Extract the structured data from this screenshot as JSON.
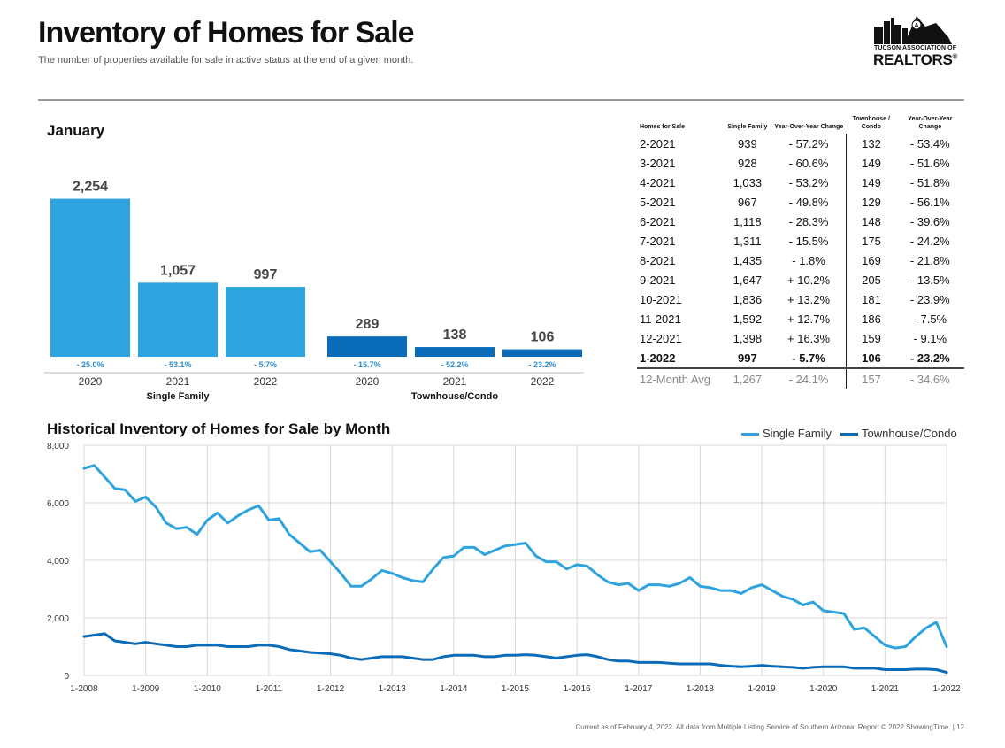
{
  "header": {
    "title": "Inventory of Homes for Sale",
    "subtitle": "The number of properties available for sale in active status at the end of a given month.",
    "logo_line1": "TUCSON ASSOCIATION OF",
    "logo_line2": "REALTORS",
    "logo_mark": "®",
    "logo_badge": "A"
  },
  "colors": {
    "single_family": "#2fa3de",
    "townhouse_condo": "#0a6cb8",
    "yoy_text": "#2f8fd0"
  },
  "chart_data": [
    {
      "type": "bar",
      "title": "January",
      "groups": [
        {
          "name": "Single Family",
          "color": "#2fa3de",
          "bars": [
            {
              "year": "2020",
              "value": 2254,
              "label": "2,254",
              "yoy": "- 25.0%"
            },
            {
              "year": "2021",
              "value": 1057,
              "label": "1,057",
              "yoy": "- 53.1%"
            },
            {
              "year": "2022",
              "value": 997,
              "label": "997",
              "yoy": "- 5.7%"
            }
          ]
        },
        {
          "name": "Townhouse/Condo",
          "color": "#0a6cb8",
          "bars": [
            {
              "year": "2020",
              "value": 289,
              "label": "289",
              "yoy": "- 15.7%"
            },
            {
              "year": "2021",
              "value": 138,
              "label": "138",
              "yoy": "- 52.2%"
            },
            {
              "year": "2022",
              "value": 106,
              "label": "106",
              "yoy": "- 23.2%"
            }
          ]
        }
      ],
      "ylim": [
        0,
        2400
      ]
    },
    {
      "type": "table",
      "columns": [
        "Homes for Sale",
        "Single Family",
        "Year-Over-Year Change",
        "Townhouse / Condo",
        "Year-Over-Year Change"
      ],
      "rows": [
        [
          "2-2021",
          "939",
          "- 57.2%",
          "132",
          "- 53.4%"
        ],
        [
          "3-2021",
          "928",
          "- 60.6%",
          "149",
          "- 51.6%"
        ],
        [
          "4-2021",
          "1,033",
          "- 53.2%",
          "149",
          "- 51.8%"
        ],
        [
          "5-2021",
          "967",
          "- 49.8%",
          "129",
          "- 56.1%"
        ],
        [
          "6-2021",
          "1,118",
          "- 28.3%",
          "148",
          "- 39.6%"
        ],
        [
          "7-2021",
          "1,311",
          "- 15.5%",
          "175",
          "- 24.2%"
        ],
        [
          "8-2021",
          "1,435",
          "- 1.8%",
          "169",
          "- 21.8%"
        ],
        [
          "9-2021",
          "1,647",
          "+ 10.2%",
          "205",
          "- 13.5%"
        ],
        [
          "10-2021",
          "1,836",
          "+ 13.2%",
          "181",
          "- 23.9%"
        ],
        [
          "11-2021",
          "1,592",
          "+ 12.7%",
          "186",
          "- 7.5%"
        ],
        [
          "12-2021",
          "1,398",
          "+ 16.3%",
          "159",
          "- 9.1%"
        ],
        [
          "1-2022",
          "997",
          "- 5.7%",
          "106",
          "- 23.2%"
        ]
      ],
      "bold_row": 11,
      "average_row": [
        "12-Month Avg",
        "1,267",
        "- 24.1%",
        "157",
        "- 34.6%"
      ]
    },
    {
      "type": "line",
      "title": "Historical Inventory of Homes for Sale by Month",
      "x_ticks": [
        "1-2008",
        "1-2009",
        "1-2010",
        "1-2011",
        "1-2012",
        "1-2013",
        "1-2014",
        "1-2015",
        "1-2016",
        "1-2017",
        "1-2018",
        "1-2019",
        "1-2020",
        "1-2021",
        "1-2022"
      ],
      "y_ticks": [
        "0",
        "2,000",
        "4,000",
        "6,000",
        "8,000"
      ],
      "ylim": [
        0,
        8000
      ],
      "x_start": "1-2008",
      "x_end": "1-2022",
      "grid": true,
      "legend_position": "top-right",
      "series": [
        {
          "name": "Single Family",
          "color": "#2fa3de",
          "x": [
            "1-2008",
            "3-2008",
            "5-2008",
            "7-2008",
            "9-2008",
            "11-2008",
            "1-2009",
            "3-2009",
            "5-2009",
            "7-2009",
            "9-2009",
            "11-2009",
            "1-2010",
            "3-2010",
            "5-2010",
            "7-2010",
            "9-2010",
            "11-2010",
            "1-2011",
            "3-2011",
            "5-2011",
            "7-2011",
            "9-2011",
            "11-2011",
            "1-2012",
            "3-2012",
            "5-2012",
            "7-2012",
            "9-2012",
            "11-2012",
            "1-2013",
            "3-2013",
            "5-2013",
            "7-2013",
            "9-2013",
            "11-2013",
            "1-2014",
            "3-2014",
            "5-2014",
            "7-2014",
            "9-2014",
            "11-2014",
            "1-2015",
            "3-2015",
            "5-2015",
            "7-2015",
            "9-2015",
            "11-2015",
            "1-2016",
            "3-2016",
            "5-2016",
            "7-2016",
            "9-2016",
            "11-2016",
            "1-2017",
            "3-2017",
            "5-2017",
            "7-2017",
            "9-2017",
            "11-2017",
            "1-2018",
            "3-2018",
            "5-2018",
            "7-2018",
            "9-2018",
            "11-2018",
            "1-2019",
            "3-2019",
            "5-2019",
            "7-2019",
            "9-2019",
            "11-2019",
            "1-2020",
            "3-2020",
            "5-2020",
            "7-2020",
            "9-2020",
            "11-2020",
            "1-2021",
            "3-2021",
            "5-2021",
            "7-2021",
            "9-2021",
            "11-2021",
            "1-2022"
          ],
          "values": [
            7200,
            7300,
            6900,
            6500,
            6450,
            6050,
            6200,
            5850,
            5300,
            5100,
            5150,
            4900,
            5400,
            5650,
            5300,
            5550,
            5750,
            5900,
            5400,
            5450,
            4900,
            4600,
            4300,
            4350,
            3950,
            3550,
            3100,
            3100,
            3350,
            3650,
            3550,
            3400,
            3300,
            3250,
            3700,
            4100,
            4150,
            4450,
            4450,
            4200,
            4350,
            4500,
            4550,
            4600,
            4150,
            3950,
            3950,
            3700,
            3850,
            3800,
            3500,
            3250,
            3150,
            3200,
            2950,
            3150,
            3150,
            3100,
            3200,
            3400,
            3100,
            3050,
            2950,
            2950,
            2850,
            3050,
            3150,
            2950,
            2750,
            2650,
            2450,
            2550,
            2250,
            2200,
            2150,
            1600,
            1650,
            1350,
            1050,
            950,
            1000,
            1350,
            1650,
            1850,
            997
          ]
        },
        {
          "name": "Townhouse/Condo",
          "color": "#0a6cb8",
          "x": [
            "1-2008",
            "3-2008",
            "5-2008",
            "7-2008",
            "9-2008",
            "11-2008",
            "1-2009",
            "3-2009",
            "5-2009",
            "7-2009",
            "9-2009",
            "11-2009",
            "1-2010",
            "3-2010",
            "5-2010",
            "7-2010",
            "9-2010",
            "11-2010",
            "1-2011",
            "3-2011",
            "5-2011",
            "7-2011",
            "9-2011",
            "11-2011",
            "1-2012",
            "3-2012",
            "5-2012",
            "7-2012",
            "9-2012",
            "11-2012",
            "1-2013",
            "3-2013",
            "5-2013",
            "7-2013",
            "9-2013",
            "11-2013",
            "1-2014",
            "3-2014",
            "5-2014",
            "7-2014",
            "9-2014",
            "11-2014",
            "1-2015",
            "3-2015",
            "5-2015",
            "7-2015",
            "9-2015",
            "11-2015",
            "1-2016",
            "3-2016",
            "5-2016",
            "7-2016",
            "9-2016",
            "11-2016",
            "1-2017",
            "3-2017",
            "5-2017",
            "7-2017",
            "9-2017",
            "11-2017",
            "1-2018",
            "3-2018",
            "5-2018",
            "7-2018",
            "9-2018",
            "11-2018",
            "1-2019",
            "3-2019",
            "5-2019",
            "7-2019",
            "9-2019",
            "11-2019",
            "1-2020",
            "3-2020",
            "5-2020",
            "7-2020",
            "9-2020",
            "11-2020",
            "1-2021",
            "3-2021",
            "5-2021",
            "7-2021",
            "9-2021",
            "11-2021",
            "1-2022"
          ],
          "values": [
            1350,
            1400,
            1450,
            1200,
            1150,
            1100,
            1150,
            1100,
            1050,
            1000,
            1000,
            1050,
            1050,
            1050,
            1000,
            1000,
            1000,
            1050,
            1050,
            1000,
            900,
            850,
            800,
            780,
            750,
            700,
            600,
            550,
            600,
            650,
            650,
            650,
            600,
            550,
            550,
            650,
            700,
            700,
            700,
            650,
            650,
            700,
            700,
            720,
            700,
            650,
            600,
            650,
            700,
            720,
            650,
            550,
            500,
            500,
            450,
            450,
            450,
            420,
            400,
            400,
            400,
            400,
            350,
            320,
            300,
            320,
            350,
            320,
            300,
            280,
            250,
            280,
            300,
            300,
            300,
            250,
            250,
            250,
            200,
            200,
            200,
            220,
            220,
            200,
            106
          ]
        }
      ]
    }
  ],
  "footer": {
    "text": "Current as of February 4, 2022. All data from Multiple Listing Service of Southern Arizona. Report © 2022 ShowingTime.  |  12"
  }
}
